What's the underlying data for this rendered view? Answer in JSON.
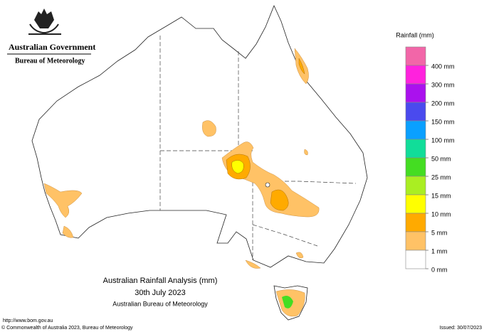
{
  "header": {
    "government": "Australian Government",
    "agency": "Bureau of Meteorology"
  },
  "legend": {
    "title": "Rainfall (mm)",
    "colors": [
      "#f266a8",
      "#ff22dd",
      "#aa11ee",
      "#4a4aee",
      "#0aa0ff",
      "#11dd99",
      "#44dd22",
      "#aaee22",
      "#ffff00",
      "#ffaa00",
      "#ffc266",
      "#ffffff"
    ],
    "labels": [
      "400 mm",
      "300 mm",
      "200 mm",
      "150 mm",
      "100 mm",
      "50 mm",
      "25 mm",
      "15 mm",
      "10 mm",
      "5 mm",
      "1 mm",
      "0 mm"
    ]
  },
  "map_title": {
    "line1": "Australian Rainfall Analysis (mm)",
    "line2": "30th July 2023",
    "line3": "Australian Bureau of Meteorology"
  },
  "footer": {
    "url": "http://www.bom.gov.au",
    "copyright": "© Commonwealth of Australia 2023, Bureau of Meteorology",
    "issued": "Issued: 30/07/2023"
  }
}
